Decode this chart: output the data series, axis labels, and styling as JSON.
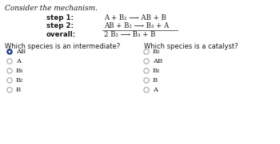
{
  "title": "Consider the mechanism.",
  "step1_label": "step 1:",
  "step2_label": "step 2:",
  "overall_label": "overall:",
  "q1": "Which species is an intermediate?",
  "q2": "Which species is a catalyst?",
  "q1_options": [
    "AB",
    "A",
    "B₃",
    "B₂",
    "B"
  ],
  "q2_options": [
    "B₃",
    "AB",
    "B₂",
    "B",
    "A"
  ],
  "q1_selected": 0,
  "q2_selected": -1,
  "bg_color": "#ffffff",
  "text_color": "#1a1a1a",
  "selected_fill": "#1a3a8a",
  "selected_edge": "#1a3a8a",
  "unselected_edge": "#999999",
  "unselected_fill": "#ffffff"
}
